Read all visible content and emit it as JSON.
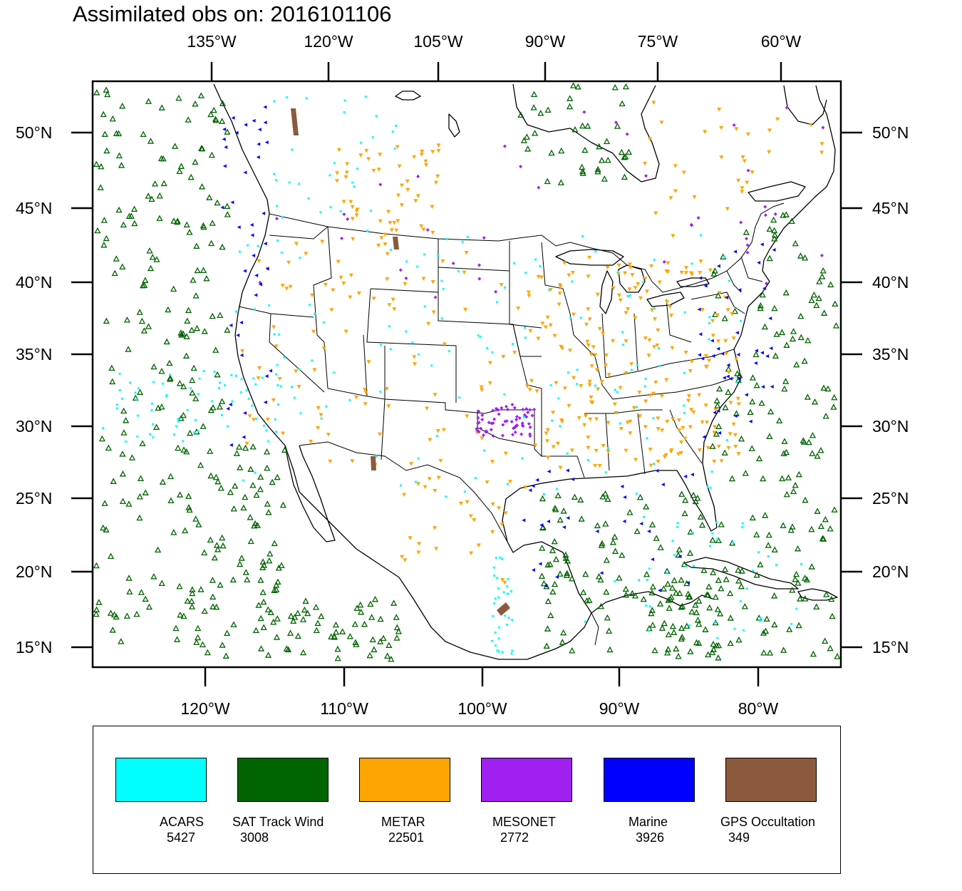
{
  "title": "Assimilated obs on: 2016101106",
  "top_lon_labels": [
    "135°W",
    "120°W",
    "105°W",
    "90°W",
    "75°W",
    "60°W"
  ],
  "bottom_lon_labels": [
    "120°W",
    "110°W",
    "100°W",
    "90°W",
    "80°W"
  ],
  "lat_labels": [
    "50°N",
    "45°N",
    "40°N",
    "35°N",
    "30°N",
    "25°N",
    "20°N",
    "15°N"
  ],
  "legend": [
    {
      "name": "ACARS",
      "count": "5427",
      "color": "#00FFFF"
    },
    {
      "name": "SAT Track Wind",
      "count": "3008",
      "color": "#006400"
    },
    {
      "name": "METAR",
      "count": "22501",
      "color": "#FFA500"
    },
    {
      "name": "MESONET",
      "count": "2772",
      "color": "#A020F0"
    },
    {
      "name": "Marine",
      "count": "3926",
      "color": "#0000FF"
    },
    {
      "name": "GPS Occultation",
      "count": "349",
      "color": "#8B5A3C"
    }
  ]
}
